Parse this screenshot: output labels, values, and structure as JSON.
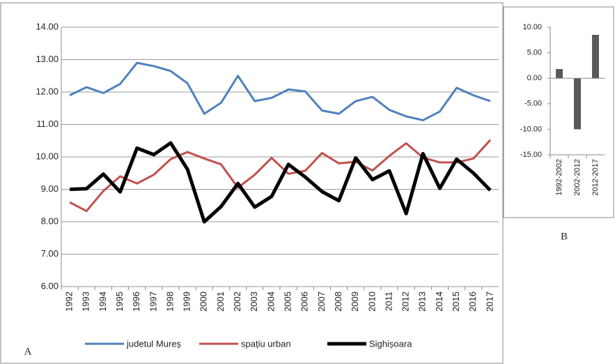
{
  "chart_data": [
    {
      "type": "line",
      "panel_label": "A",
      "categories": [
        "1992",
        "1993",
        "1994",
        "1995",
        "1996",
        "1997",
        "1998",
        "1999",
        "2000",
        "2001",
        "2002",
        "2003",
        "2004",
        "2005",
        "2006",
        "2007",
        "2008",
        "2009",
        "2010",
        "2011",
        "2012",
        "2013",
        "2014",
        "2015",
        "2016",
        "2017"
      ],
      "series": [
        {
          "name": "judetul Mureș",
          "color": "#4f81bd",
          "values": [
            11.9,
            12.15,
            11.97,
            12.25,
            12.9,
            12.8,
            12.65,
            12.27,
            11.33,
            11.67,
            12.5,
            11.72,
            11.82,
            12.08,
            12.02,
            11.43,
            11.33,
            11.72,
            11.85,
            11.45,
            11.25,
            11.13,
            11.4,
            12.13,
            11.9,
            11.72
          ]
        },
        {
          "name": "spațiu urban",
          "color": "#c0504d",
          "values": [
            8.6,
            8.33,
            8.95,
            9.4,
            9.18,
            9.45,
            9.93,
            10.15,
            9.95,
            9.77,
            9.05,
            9.45,
            9.97,
            9.48,
            9.57,
            10.12,
            9.8,
            9.85,
            9.58,
            10.03,
            10.42,
            9.98,
            9.83,
            9.83,
            9.95,
            10.52
          ]
        },
        {
          "name": "Sighișoara",
          "color": "#000000",
          "values": [
            9.0,
            9.02,
            9.47,
            8.92,
            10.27,
            10.07,
            10.43,
            9.62,
            8.0,
            8.47,
            9.18,
            8.45,
            8.78,
            9.77,
            9.38,
            8.93,
            8.65,
            9.97,
            9.3,
            9.57,
            8.25,
            10.1,
            9.03,
            9.93,
            9.5,
            8.97
          ]
        }
      ],
      "ylim": [
        6,
        14
      ],
      "yticks": [
        {
          "value": 6,
          "label": "6.00"
        },
        {
          "value": 7,
          "label": "7.00"
        },
        {
          "value": 8,
          "label": "8.00"
        },
        {
          "value": 9,
          "label": "9.00"
        },
        {
          "value": 10,
          "label": "10.00"
        },
        {
          "value": 11,
          "label": "11.00"
        },
        {
          "value": 12,
          "label": "12.00"
        },
        {
          "value": 13,
          "label": "13.00"
        },
        {
          "value": 14,
          "label": "14.00"
        }
      ],
      "grid": true,
      "legend": "bottom"
    },
    {
      "type": "bar",
      "panel_label": "B",
      "categories": [
        "1992-2002",
        "2002-2012",
        "2012-2017"
      ],
      "values": [
        1.8,
        -10,
        8.5
      ],
      "color": "#595959",
      "ylim": [
        -15,
        10
      ],
      "yticks": [
        {
          "value": -15,
          "label": "-15.00"
        },
        {
          "value": -10,
          "label": "-10.00"
        },
        {
          "value": -5,
          "label": "-5.00"
        },
        {
          "value": 0,
          "label": "0.00"
        },
        {
          "value": 5,
          "label": "5.00"
        },
        {
          "value": 10,
          "label": "10.00"
        }
      ],
      "grid": false
    }
  ]
}
